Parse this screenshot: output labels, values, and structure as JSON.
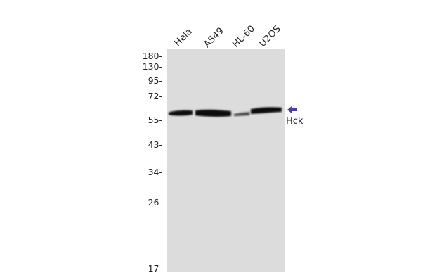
{
  "lanes": [
    "Hela",
    "A549",
    "HL-60",
    "U2OS"
  ],
  "markers": [
    "180-",
    "130-",
    "95-",
    "72-",
    "55-",
    "43-",
    "34-",
    "26-",
    "17-"
  ],
  "target": {
    "label": "Hck",
    "arrow_color": "#4a3fa0"
  },
  "colors": {
    "membrane": "#dcdcdc",
    "band": "#111111"
  }
}
